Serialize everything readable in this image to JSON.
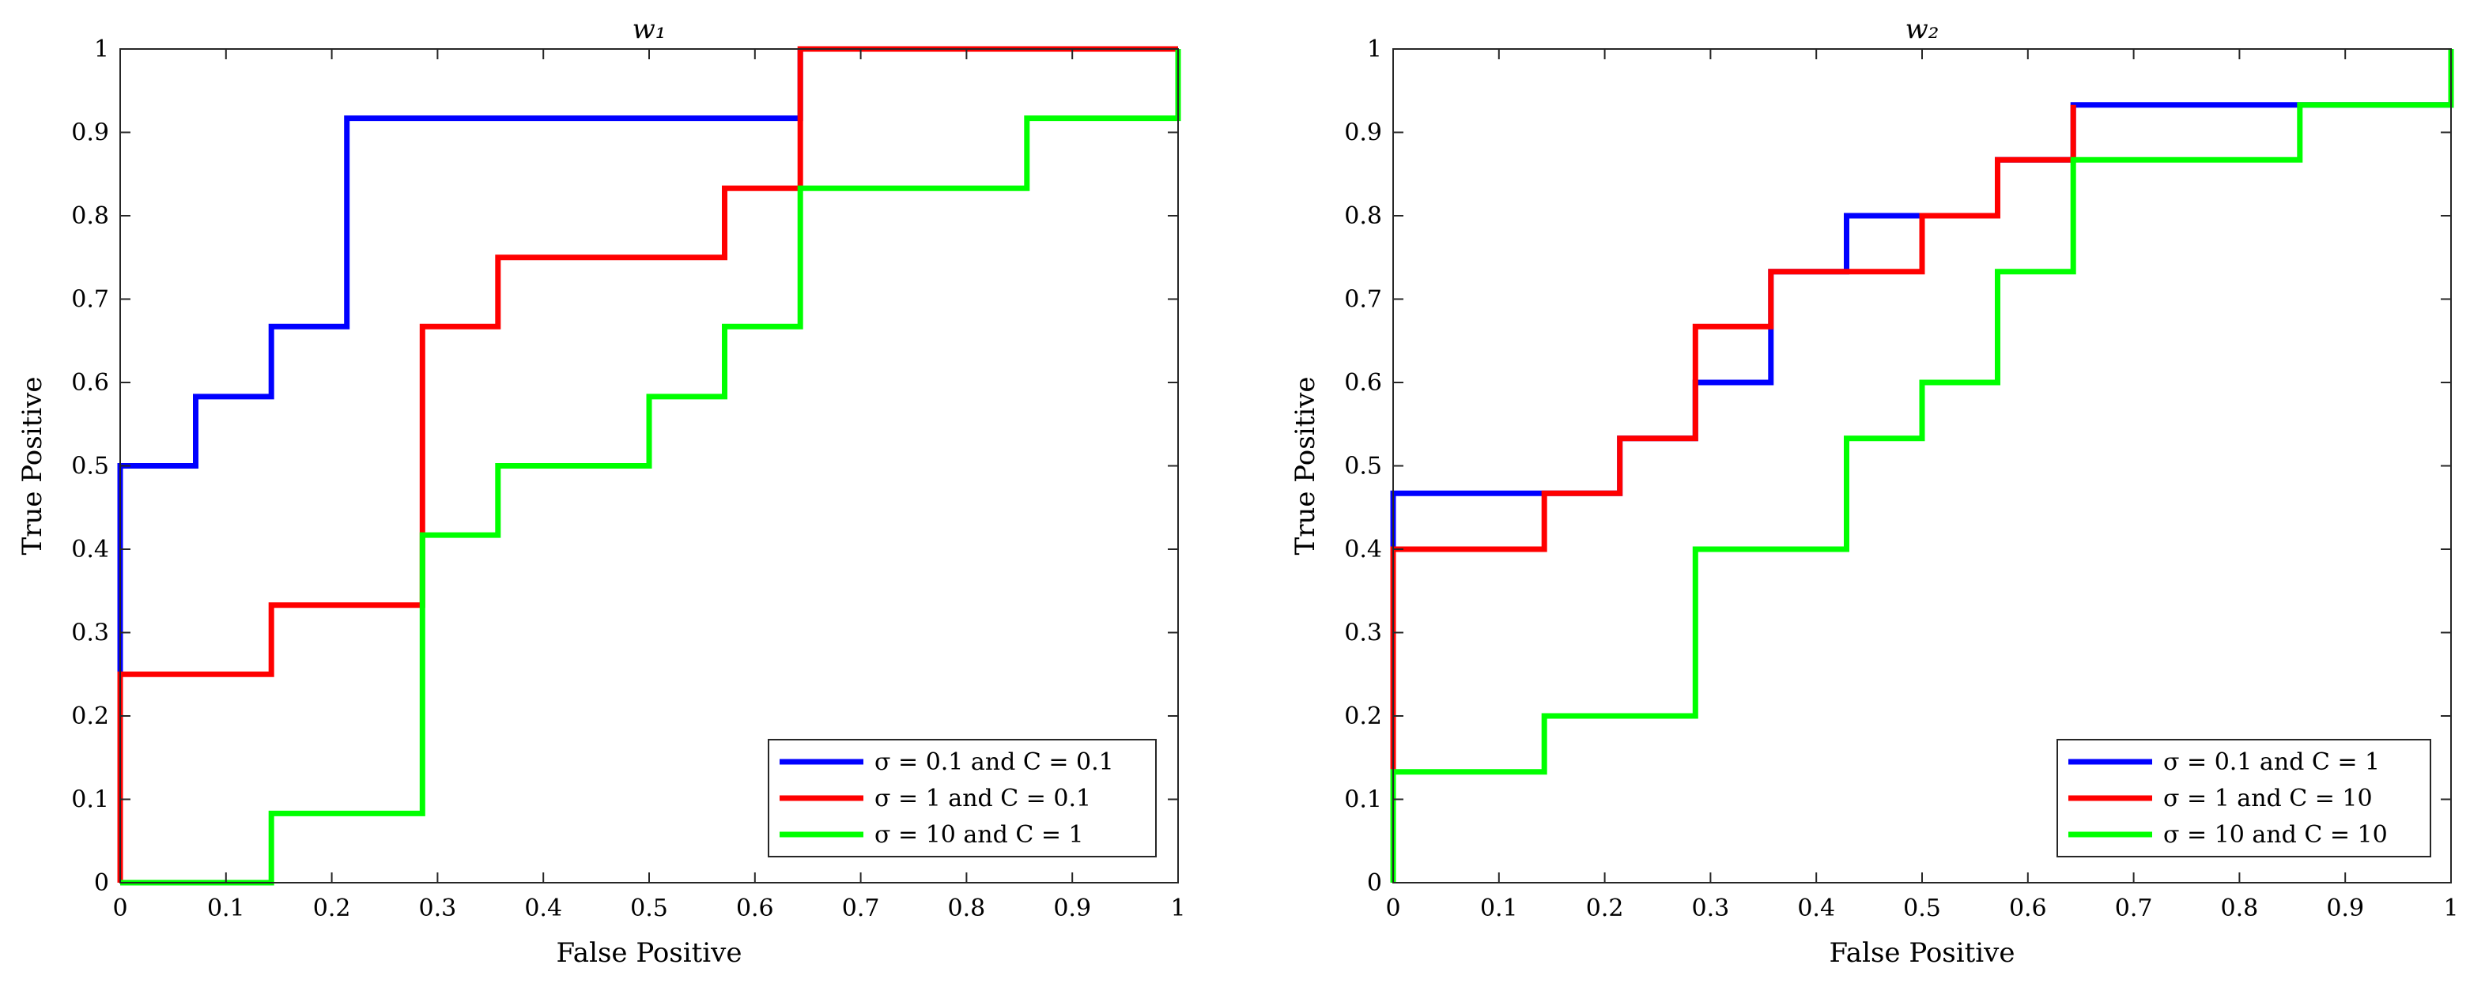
{
  "chart_data": [
    {
      "type": "line",
      "title": "w₁",
      "xlabel": "False Positive",
      "ylabel": "True Positive",
      "xlim": [
        0,
        1
      ],
      "ylim": [
        0,
        1
      ],
      "xticks": [
        0,
        0.1,
        0.2,
        0.3,
        0.4,
        0.5,
        0.6,
        0.7,
        0.8,
        0.9,
        1
      ],
      "yticks": [
        0,
        0.1,
        0.2,
        0.3,
        0.4,
        0.5,
        0.6,
        0.7,
        0.8,
        0.9,
        1
      ],
      "xtick_labels": [
        "0",
        "0.1",
        "0.2",
        "0.3",
        "0.4",
        "0.5",
        "0.6",
        "0.7",
        "0.8",
        "0.9",
        "1"
      ],
      "ytick_labels": [
        "0",
        "0.1",
        "0.2",
        "0.3",
        "0.4",
        "0.5",
        "0.6",
        "0.7",
        "0.8",
        "0.9",
        "1"
      ],
      "grid": false,
      "legend_position": "bottom-right",
      "series": [
        {
          "name": "σ = 0.1 and C = 0.1",
          "color": "#0000ff",
          "x": [
            0,
            0,
            0,
            0.0714,
            0.0714,
            0.1429,
            0.1429,
            0.2143,
            0.2143,
            0.6429,
            0.6429
          ],
          "y": [
            0,
            0.25,
            0.5,
            0.5,
            0.583,
            0.583,
            0.667,
            0.667,
            0.917,
            0.917,
            1
          ]
        },
        {
          "name": "σ = 1 and C = 0.1",
          "color": "#ff0000",
          "x": [
            0,
            0,
            0.1429,
            0.1429,
            0.2857,
            0.2857,
            0.3571,
            0.3571,
            0.5714,
            0.5714,
            0.6429,
            0.6429,
            1
          ],
          "y": [
            0,
            0.25,
            0.25,
            0.333,
            0.333,
            0.667,
            0.667,
            0.75,
            0.75,
            0.833,
            0.833,
            1,
            1
          ]
        },
        {
          "name": "σ = 10 and C = 1",
          "color": "#00ff00",
          "x": [
            0,
            0.1429,
            0.1429,
            0.2857,
            0.2857,
            0.3571,
            0.3571,
            0.5,
            0.5,
            0.5714,
            0.5714,
            0.6429,
            0.6429,
            0.8571,
            0.8571,
            1,
            1
          ],
          "y": [
            0,
            0,
            0.083,
            0.083,
            0.417,
            0.417,
            0.5,
            0.5,
            0.583,
            0.583,
            0.667,
            0.667,
            0.833,
            0.833,
            0.917,
            0.917,
            1
          ]
        }
      ]
    },
    {
      "type": "line",
      "title": "w₂",
      "xlabel": "False Positive",
      "ylabel": "True Positive",
      "xlim": [
        0,
        1
      ],
      "ylim": [
        0,
        1
      ],
      "xticks": [
        0,
        0.1,
        0.2,
        0.3,
        0.4,
        0.5,
        0.6,
        0.7,
        0.8,
        0.9,
        1
      ],
      "yticks": [
        0,
        0.1,
        0.2,
        0.3,
        0.4,
        0.5,
        0.6,
        0.7,
        0.8,
        0.9,
        1
      ],
      "xtick_labels": [
        "0",
        "0.1",
        "0.2",
        "0.3",
        "0.4",
        "0.5",
        "0.6",
        "0.7",
        "0.8",
        "0.9",
        "1"
      ],
      "ytick_labels": [
        "0",
        "0.1",
        "0.2",
        "0.3",
        "0.4",
        "0.5",
        "0.6",
        "0.7",
        "0.8",
        "0.9",
        "1"
      ],
      "grid": false,
      "legend_position": "bottom-right",
      "series": [
        {
          "name": "σ = 0.1 and C = 1",
          "color": "#0000ff",
          "x": [
            0,
            0,
            0.1429,
            0.1429,
            0.2143,
            0.2143,
            0.2857,
            0.2857,
            0.3571,
            0.3571,
            0.4286,
            0.4286,
            0.5,
            0.5,
            0.5714,
            0.5714,
            0.6429,
            0.6429,
            0.8571,
            0.8571,
            1,
            1
          ],
          "y": [
            0.133,
            0.467,
            0.467,
            0.467,
            0.467,
            0.533,
            0.533,
            0.6,
            0.6,
            0.733,
            0.733,
            0.8,
            0.8,
            0.8,
            0.8,
            0.867,
            0.867,
            0.933,
            0.933,
            0.933,
            0.933,
            1
          ]
        },
        {
          "name": "σ = 1 and C = 10",
          "color": "#ff0000",
          "x": [
            0,
            0,
            0.1429,
            0.1429,
            0.2143,
            0.2143,
            0.2857,
            0.2857,
            0.3571,
            0.3571,
            0.5,
            0.5,
            0.5714,
            0.5714,
            0.6429,
            0.6429
          ],
          "y": [
            0.133,
            0.4,
            0.4,
            0.467,
            0.467,
            0.533,
            0.533,
            0.667,
            0.667,
            0.733,
            0.733,
            0.8,
            0.8,
            0.867,
            0.867,
            0.933
          ]
        },
        {
          "name": "σ = 10 and C = 10",
          "color": "#00ff00",
          "x": [
            0,
            0,
            0.1429,
            0.1429,
            0.2857,
            0.2857,
            0.4286,
            0.4286,
            0.5,
            0.5,
            0.5714,
            0.5714,
            0.6429,
            0.6429,
            0.8571,
            0.8571,
            1,
            1
          ],
          "y": [
            0,
            0.133,
            0.133,
            0.2,
            0.2,
            0.4,
            0.4,
            0.533,
            0.533,
            0.6,
            0.6,
            0.733,
            0.733,
            0.867,
            0.867,
            0.933,
            0.933,
            1
          ]
        }
      ]
    }
  ]
}
